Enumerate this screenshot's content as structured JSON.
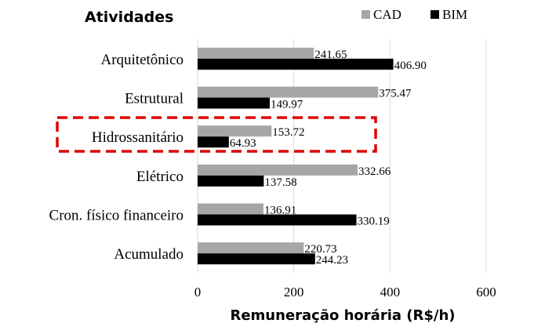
{
  "chart_data": {
    "type": "bar",
    "orientation": "horizontal",
    "title": "Atividades",
    "xlabel": "Remuneração horária (R$/h)",
    "ylabel": "",
    "categories": [
      "Arquitetônico",
      "Estrutural",
      "Hidrossanitário",
      "Elétrico",
      "Cron. físico financeiro",
      "Acumulado"
    ],
    "series": [
      {
        "name": "CAD",
        "color": "#a6a6a6",
        "values": [
          241.65,
          375.47,
          153.72,
          332.66,
          136.91,
          220.73
        ]
      },
      {
        "name": "BIM",
        "color": "#000000",
        "values": [
          406.9,
          149.97,
          64.93,
          137.58,
          330.19,
          244.23
        ]
      }
    ],
    "data_labels": [
      [
        "241.65",
        "375.47",
        "153.72",
        "332.66",
        "136.91",
        "220.73"
      ],
      [
        "406.90",
        "149.97",
        "64.93",
        "137.58",
        "330.19",
        "244.23"
      ]
    ],
    "xlim": [
      0,
      600
    ],
    "xticks": [
      "0",
      "200",
      "400",
      "600"
    ],
    "grid": "vertical",
    "legend": "top-right",
    "highlight": {
      "category": "Hidrossanitário",
      "style": "red-dashed-box",
      "color": "#e00000"
    }
  }
}
